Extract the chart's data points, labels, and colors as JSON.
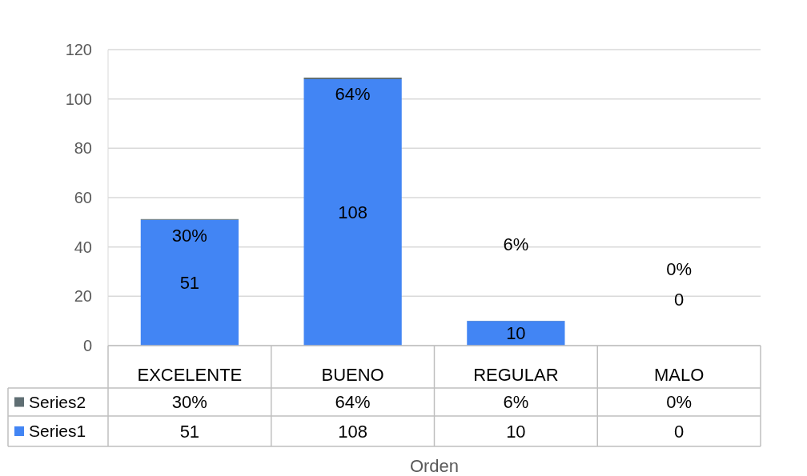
{
  "chart_data": {
    "type": "bar",
    "stacked": true,
    "xlabel": "Orden",
    "categories": [
      "EXCELENTE",
      "BUENO",
      "REGULAR",
      "MALO"
    ],
    "series": [
      {
        "name": "Series1",
        "color": "#4285f4",
        "values": [
          51,
          108,
          10,
          0
        ],
        "value_labels": [
          "51",
          "108",
          "10",
          "0"
        ]
      },
      {
        "name": "Series2",
        "color": "#5f6e73",
        "values": [
          0.3,
          0.64,
          0.06,
          0
        ],
        "value_labels": [
          "30%",
          "64%",
          "6%",
          "0%"
        ]
      }
    ],
    "ylim": [
      0,
      120
    ],
    "yticks": [
      0,
      20,
      40,
      60,
      80,
      100,
      120
    ],
    "grid": "y",
    "legend": "bottom"
  }
}
